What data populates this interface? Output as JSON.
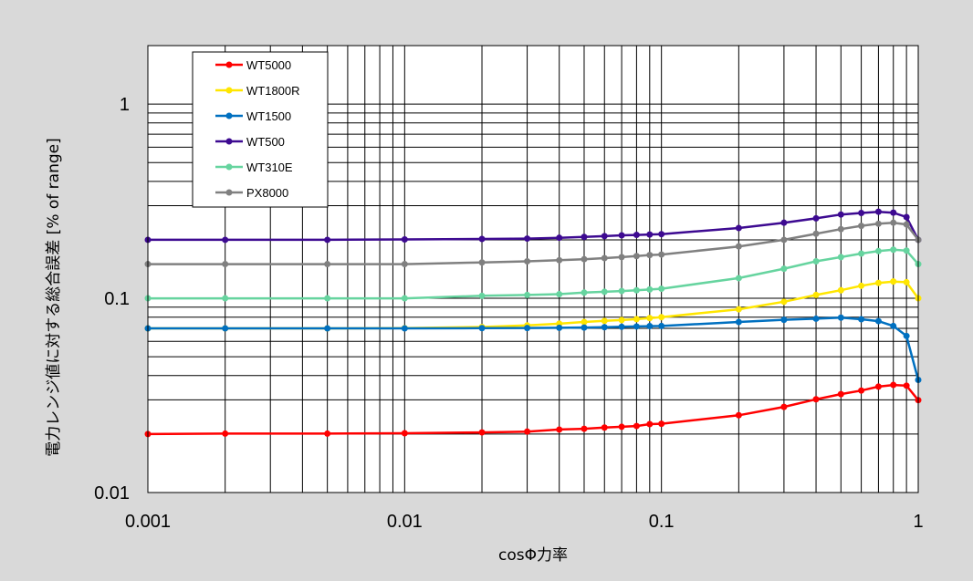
{
  "chart_data": {
    "type": "line",
    "xlabel": "cosΦ力率",
    "ylabel": "電力レンジ値に対する総合誤差 [% of range]",
    "xscale": "log",
    "yscale": "log",
    "xlim": [
      0.001,
      1
    ],
    "ylim": [
      0.01,
      2
    ],
    "grid": "on",
    "legend_position": "top-left",
    "x_tick_labels": [
      "0.001",
      "0.01",
      "0.1",
      "1"
    ],
    "y_tick_labels": [
      "0.01",
      "0.1",
      "1"
    ],
    "x": [
      0.001,
      0.002,
      0.005,
      0.01,
      0.02,
      0.03,
      0.04,
      0.05,
      0.06,
      0.07,
      0.08,
      0.09,
      0.1,
      0.2,
      0.3,
      0.4,
      0.5,
      0.6,
      0.7,
      0.8,
      0.9,
      1.0
    ],
    "series": [
      {
        "name": "WT5000",
        "color": "#ff0000",
        "values": [
          0.02,
          0.0201,
          0.0201,
          0.0202,
          0.0204,
          0.0206,
          0.0211,
          0.0213,
          0.0216,
          0.0218,
          0.022,
          0.0225,
          0.0226,
          0.025,
          0.0276,
          0.0302,
          0.0321,
          0.0335,
          0.0351,
          0.0358,
          0.0355,
          0.0299
        ]
      },
      {
        "name": "WT1800R",
        "color": "#ffe600",
        "values": [
          0.07,
          0.07,
          0.07,
          0.0702,
          0.0712,
          0.0725,
          0.074,
          0.0755,
          0.0765,
          0.0773,
          0.0781,
          0.0791,
          0.08,
          0.0878,
          0.096,
          0.104,
          0.11,
          0.116,
          0.12,
          0.122,
          0.121,
          0.1
        ]
      },
      {
        "name": "WT1500",
        "color": "#0070c0",
        "values": [
          0.07,
          0.07,
          0.07,
          0.07,
          0.0702,
          0.0703,
          0.0705,
          0.0707,
          0.071,
          0.0713,
          0.0716,
          0.0719,
          0.072,
          0.0755,
          0.0775,
          0.0785,
          0.0795,
          0.078,
          0.0763,
          0.072,
          0.064,
          0.038
        ]
      },
      {
        "name": "WT500",
        "color": "#3d0a91",
        "values": [
          0.2,
          0.2,
          0.2,
          0.201,
          0.202,
          0.203,
          0.205,
          0.207,
          0.209,
          0.211,
          0.212,
          0.213,
          0.214,
          0.23,
          0.245,
          0.258,
          0.27,
          0.275,
          0.279,
          0.276,
          0.262,
          0.2
        ]
      },
      {
        "name": "WT310E",
        "color": "#66d49f",
        "values": [
          0.1,
          0.1,
          0.1,
          0.1,
          0.103,
          0.104,
          0.105,
          0.107,
          0.108,
          0.109,
          0.11,
          0.111,
          0.112,
          0.127,
          0.142,
          0.155,
          0.163,
          0.17,
          0.175,
          0.178,
          0.176,
          0.15
        ]
      },
      {
        "name": "PX8000",
        "color": "#808080",
        "values": [
          0.15,
          0.15,
          0.15,
          0.15,
          0.153,
          0.155,
          0.157,
          0.159,
          0.161,
          0.163,
          0.165,
          0.167,
          0.168,
          0.185,
          0.2,
          0.215,
          0.227,
          0.236,
          0.242,
          0.245,
          0.24,
          0.2
        ]
      }
    ]
  }
}
